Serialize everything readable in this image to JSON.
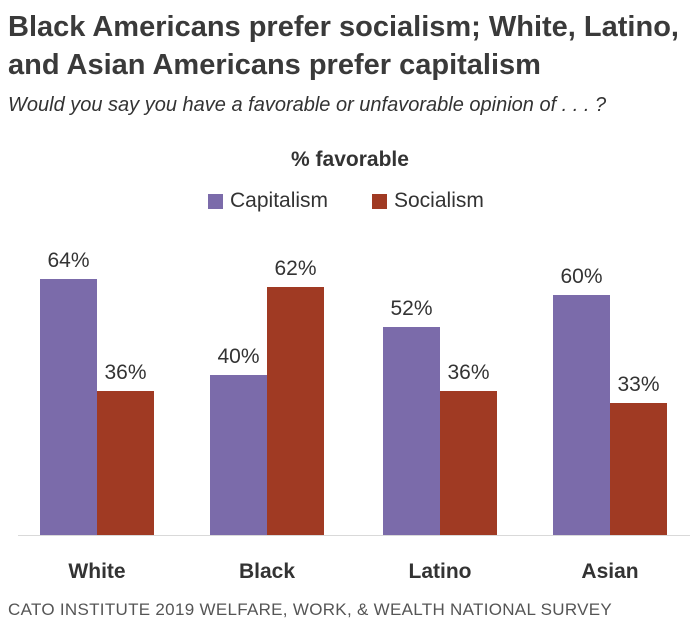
{
  "header": {
    "title": "Black Americans prefer socialism; White, Latino, and Asian Americans prefer capitalism",
    "subtitle": "Would you say you have a favorable or unfavorable opinion of . . . ?"
  },
  "footer": {
    "source": "CATO INSTITUTE 2019 WELFARE, WORK, & WEALTH NATIONAL SURVEY"
  },
  "chart_data": {
    "type": "bar",
    "title": "% favorable",
    "categories": [
      "White",
      "Black",
      "Latino",
      "Asian"
    ],
    "series": [
      {
        "name": "Capitalism",
        "values": [
          64,
          40,
          52,
          60
        ],
        "color": "#7B6BAA"
      },
      {
        "name": "Socialism",
        "values": [
          36,
          62,
          36,
          33
        ],
        "color": "#A03A23"
      }
    ],
    "value_suffix": "%",
    "ylim": [
      0,
      100
    ],
    "legend": "top-center",
    "grid": false,
    "xlabel": "",
    "ylabel": ""
  }
}
